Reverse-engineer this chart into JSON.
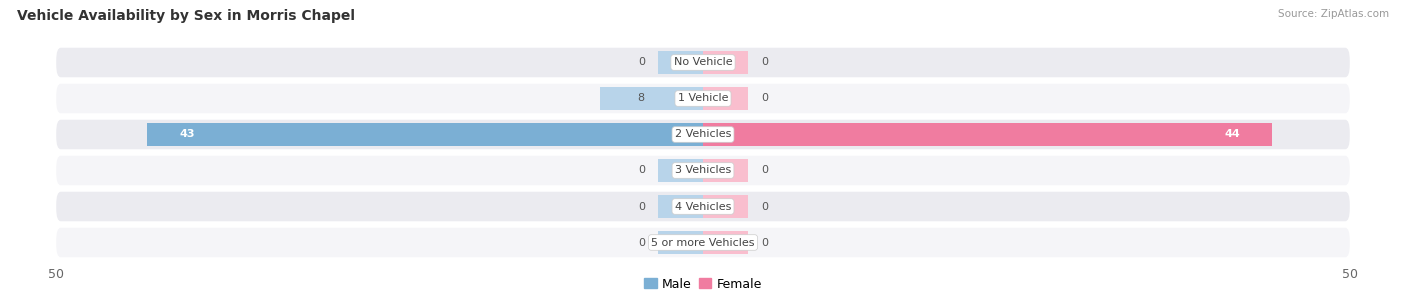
{
  "title": "Vehicle Availability by Sex in Morris Chapel",
  "source": "Source: ZipAtlas.com",
  "categories": [
    "No Vehicle",
    "1 Vehicle",
    "2 Vehicles",
    "3 Vehicles",
    "4 Vehicles",
    "5 or more Vehicles"
  ],
  "male_values": [
    0,
    8,
    43,
    0,
    0,
    0
  ],
  "female_values": [
    0,
    0,
    44,
    0,
    0,
    0
  ],
  "male_color": "#7bafd4",
  "female_color": "#f07ca0",
  "male_color_light": "#b8d4ea",
  "female_color_light": "#f9bece",
  "male_label": "Male",
  "female_label": "Female",
  "xlim": 50,
  "bar_height": 0.62,
  "row_colors": [
    "#ebebf0",
    "#f5f5f8"
  ],
  "label_fontsize": 8,
  "title_fontsize": 10,
  "value_fontsize": 8
}
